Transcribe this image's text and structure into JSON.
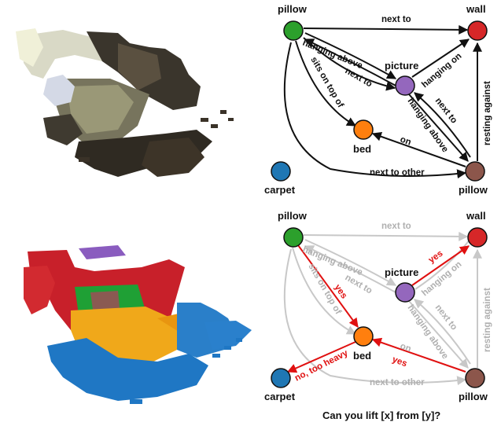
{
  "node_labels": {
    "pillow_left": "pillow",
    "wall": "wall",
    "picture": "picture",
    "bed": "bed",
    "carpet": "carpet",
    "pillow_right": "pillow"
  },
  "node_colors": {
    "pillow_left": "#2ca02c",
    "wall": "#d62728",
    "picture": "#9467bd",
    "bed": "#ff7f0e",
    "carpet": "#1f77b4",
    "pillow_right": "#8c564b"
  },
  "edge_labels": {
    "next_to_top": "next to",
    "hanging_above_left": "hanging above",
    "next_to_left": "next to",
    "sits_on_top_of": "sits on top of",
    "hanging_on": "hanging on",
    "hanging_above_right": "hanging above",
    "next_to_right": "next to",
    "on": "on",
    "resting_against": "resting against",
    "next_to_other": "next to other"
  },
  "query_labels": {
    "yes_pillow_bed": "yes",
    "yes_picture_wall": "yes",
    "yes_pillow_bed_2": "yes",
    "no_too_heavy": "no, too heavy"
  },
  "caption": "Can you lift [x] from [y]?",
  "colors": {
    "edge_dark": "#111111",
    "edge_faded": "#c8c8c8",
    "edge_query": "#e01010",
    "label_faded": "#b0b0b0"
  }
}
